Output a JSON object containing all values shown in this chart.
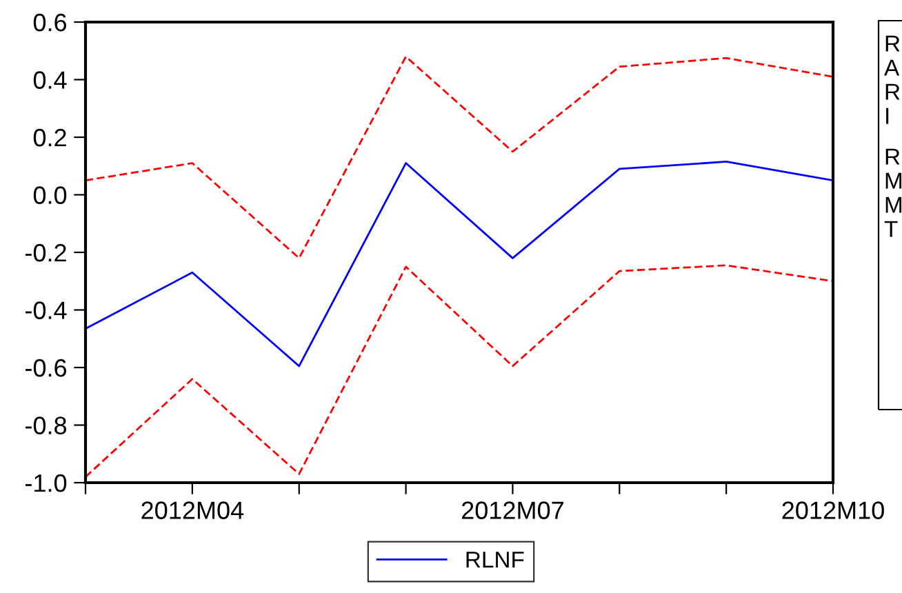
{
  "chart_data": {
    "type": "line",
    "categories": [
      null,
      "2012M04",
      null,
      null,
      "2012M07",
      null,
      null,
      "2012M10"
    ],
    "series": [
      {
        "name": "RLNF",
        "color": "#0000ff",
        "line_style": "solid",
        "values": [
          -0.465,
          -0.27,
          -0.595,
          0.11,
          -0.22,
          0.09,
          0.115,
          0.05
        ]
      },
      {
        "color": "#ff0000",
        "line_style": "dashed",
        "values": [
          0.05,
          0.11,
          -0.22,
          0.48,
          0.15,
          0.445,
          0.475,
          0.41
        ]
      },
      {
        "color": "#ff0000",
        "line_style": "dashed",
        "values": [
          -0.98,
          -0.64,
          -0.97,
          -0.25,
          -0.595,
          -0.265,
          -0.245,
          -0.3
        ]
      }
    ],
    "ylim": [
      -1.0,
      0.6
    ],
    "yticks": [
      {
        "value": -1.0,
        "label": "-1.0"
      },
      {
        "value": -0.8,
        "label": "-0.8"
      },
      {
        "value": -0.6,
        "label": "-0.6"
      },
      {
        "value": -0.4,
        "label": "-0.4"
      },
      {
        "value": -0.2,
        "label": "-0.2"
      },
      {
        "value": 0.0,
        "label": "0.0"
      },
      {
        "value": 0.2,
        "label": "0.2"
      },
      {
        "value": 0.4,
        "label": "0.4"
      },
      {
        "value": 0.6,
        "label": "0.6"
      }
    ],
    "grid": false,
    "legend": "bottom",
    "marker": "none",
    "annotations": [
      "R",
      "A",
      "R",
      "I",
      "R",
      "M",
      "M",
      "T"
    ]
  }
}
